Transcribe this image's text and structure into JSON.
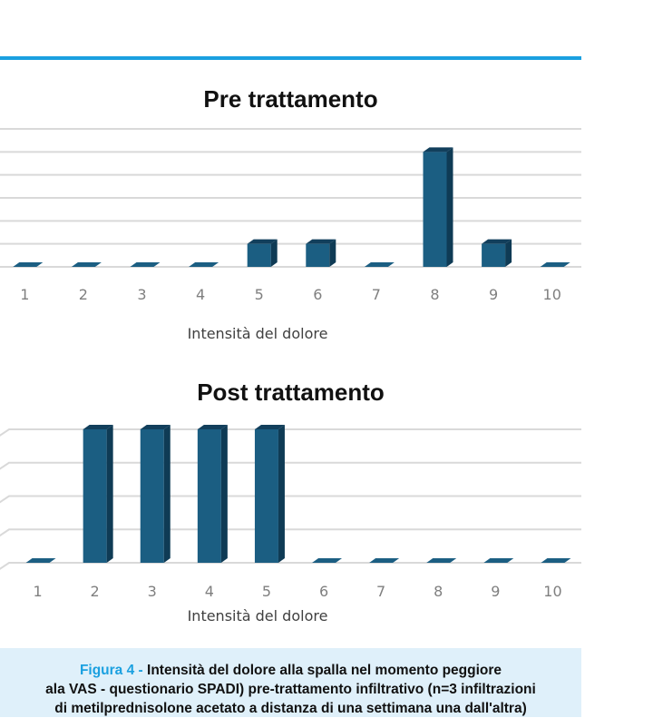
{
  "chart_data": [
    {
      "type": "bar",
      "title": "Pre trattamento",
      "xlabel": "Intensità del dolore",
      "categories": [
        "1",
        "2",
        "3",
        "4",
        "5",
        "6",
        "7",
        "8",
        "9",
        "10"
      ],
      "values": [
        0,
        0,
        0,
        0,
        1,
        1,
        0,
        5,
        1,
        0
      ],
      "ylim": [
        0,
        6
      ],
      "grid": true
    },
    {
      "type": "bar",
      "title": "Post trattamento",
      "xlabel": "Intensità del dolore",
      "categories": [
        "1",
        "2",
        "3",
        "4",
        "5",
        "6",
        "7",
        "8",
        "9",
        "10"
      ],
      "values": [
        0,
        4,
        4,
        4,
        4,
        0,
        0,
        0,
        0,
        0
      ],
      "ylim": [
        0,
        4
      ],
      "grid": true
    }
  ],
  "caption": {
    "lead": "Figura 4 - ",
    "line1": "Intensità del dolore alla spalla nel momento peggiore",
    "line2": "ala VAS - questionario SPADI) pre-trattamento infiltrativo (n=3 infiltrazioni",
    "line3": "di metilprednisolone acetato a distanza di una settimana una dall'altra)"
  },
  "colors": {
    "accent": "#1aa0e0",
    "bar_front": "#1b5e82",
    "bar_side": "#0f3b55",
    "bar_top": "#123f5c",
    "grid": "#d9d9d9",
    "caption_bg": "#dff0fa"
  }
}
